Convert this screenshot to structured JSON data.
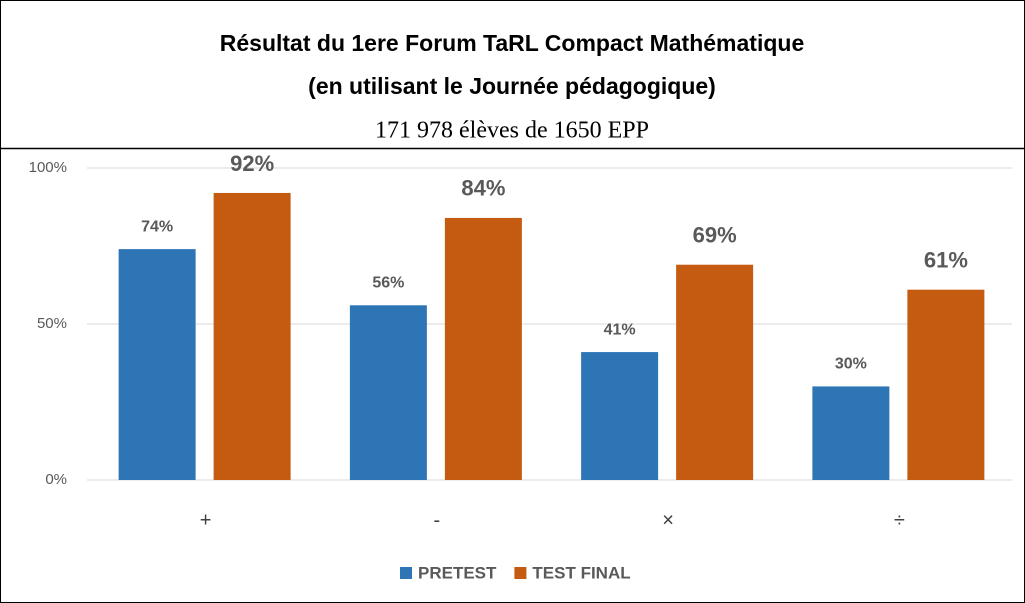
{
  "chart_data": {
    "type": "bar",
    "title": "Résultat du 1ere Forum TaRL Compact Mathématique",
    "subtitle": [
      "(en utilisant le Journée pédagogique)",
      "171 978 élèves de 1650 EPP"
    ],
    "categories": [
      "+",
      "-",
      "×",
      "÷"
    ],
    "series": [
      {
        "name": "PRETEST",
        "color": "#2e75b6",
        "values": [
          74,
          56,
          41,
          30
        ],
        "value_labels": [
          "74%",
          "56%",
          "41%",
          "30%"
        ]
      },
      {
        "name": "TEST FINAL",
        "color": "#c55a11",
        "values": [
          92,
          84,
          69,
          61
        ],
        "value_labels": [
          "92%",
          "84%",
          "69%",
          "61%"
        ]
      }
    ],
    "ylim": [
      0,
      100
    ],
    "yticks": [
      {
        "value": 0,
        "label": "0%"
      },
      {
        "value": 50,
        "label": "50%"
      },
      {
        "value": 100,
        "label": "100%"
      }
    ],
    "grid": true,
    "legend": "bottom"
  }
}
